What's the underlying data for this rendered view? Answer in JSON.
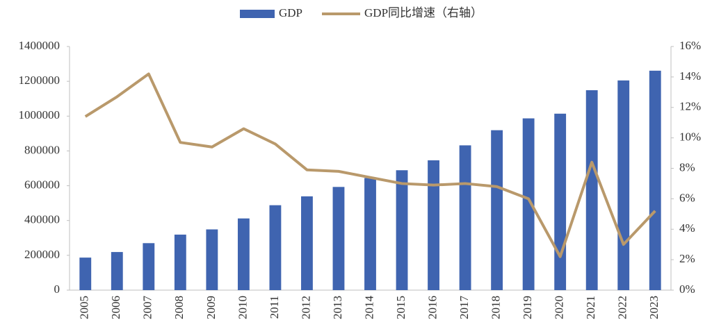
{
  "chart_data": {
    "type": "bar_line",
    "categories": [
      "2005",
      "2006",
      "2007",
      "2008",
      "2009",
      "2010",
      "2011",
      "2012",
      "2013",
      "2014",
      "2015",
      "2016",
      "2017",
      "2018",
      "2019",
      "2020",
      "2021",
      "2022",
      "2023"
    ],
    "series": [
      {
        "name": "GDP",
        "color": "#3f64b0",
        "type": "bar",
        "values": [
          187000,
          219000,
          270000,
          319000,
          349000,
          412000,
          488000,
          539000,
          593000,
          644000,
          689000,
          746000,
          832000,
          919000,
          987000,
          1014000,
          1149000,
          1205000,
          1261000
        ]
      },
      {
        "name": "GDP同比增速（右轴）",
        "color": "#b9996b",
        "type": "line",
        "axis": "y2",
        "values": [
          11.4,
          12.7,
          14.2,
          9.7,
          9.4,
          10.6,
          9.6,
          7.9,
          7.8,
          7.4,
          7.0,
          6.9,
          7.0,
          6.8,
          6.0,
          2.2,
          8.4,
          3.0,
          5.2
        ]
      }
    ],
    "ylim": [
      0,
      1400000
    ],
    "yticks": [
      0,
      200000,
      400000,
      600000,
      800000,
      1000000,
      1200000,
      1400000
    ],
    "y2lim": [
      0,
      16
    ],
    "y2ticks": [
      {
        "value": 0,
        "label": "0%"
      },
      {
        "value": 2,
        "label": "2%"
      },
      {
        "value": 4,
        "label": "4%"
      },
      {
        "value": 6,
        "label": "6%"
      },
      {
        "value": 8,
        "label": "8%"
      },
      {
        "value": 10,
        "label": "10%"
      },
      {
        "value": 12,
        "label": "12%"
      },
      {
        "value": 14,
        "label": "14%"
      },
      {
        "value": 16,
        "label": "16%"
      }
    ],
    "grid": false,
    "legend": "top"
  }
}
